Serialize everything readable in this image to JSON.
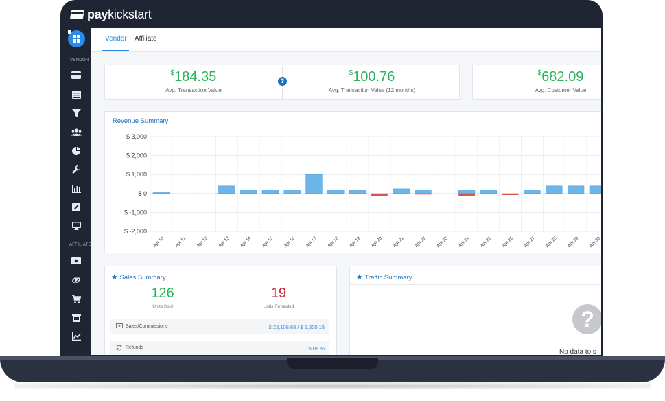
{
  "app": {
    "logo_pay": "pay",
    "logo_kick": "kickstart"
  },
  "sidebar": {
    "vendor_label": "VENDOR",
    "affiliate_label": "AFFILIATE",
    "vendor_icons": [
      "credit-card-icon",
      "list-icon",
      "filter-icon",
      "users-icon",
      "pie-chart-icon",
      "wrench-icon",
      "bar-chart-icon",
      "edit-icon",
      "monitor-icon"
    ],
    "affiliate_icons": [
      "money-icon",
      "link-icon",
      "cart-icon",
      "store-icon",
      "line-chart-icon"
    ]
  },
  "tabs": [
    {
      "label": "Vendor",
      "active": true
    },
    {
      "label": "Affiliate",
      "active": false
    }
  ],
  "stats": [
    {
      "currency": "$",
      "value": "184.35",
      "label": "Avg. Transaction Value"
    },
    {
      "currency": "$",
      "value": "100.76",
      "label": "Avg. Transaction Value (12 months)"
    },
    {
      "currency": "$",
      "value": "682.09",
      "label": "Avg. Customer Value"
    }
  ],
  "revenue": {
    "title": "Revenue Summary"
  },
  "chart_data": {
    "type": "bar",
    "title": "Revenue Summary",
    "ylim": [
      -2000,
      3000
    ],
    "yticks": [
      "$ 3,000",
      "$ 2,000",
      "$ 1,000",
      "$ 0",
      "$ -1,000",
      "$ -2,000"
    ],
    "ytick_values": [
      3000,
      2000,
      1000,
      0,
      -1000,
      -2000
    ],
    "categories": [
      "Apr 10",
      "Apr 11",
      "Apr 12",
      "Apr 13",
      "Apr 14",
      "Apr 15",
      "Apr 16",
      "Apr 17",
      "Apr 18",
      "Apr 19",
      "Apr 20",
      "Apr 21",
      "Apr 22",
      "Apr 23",
      "Apr 24",
      "Apr 25",
      "Apr 26",
      "Apr 27",
      "Apr 28",
      "Apr 29",
      "Apr 30"
    ],
    "values": [
      50,
      0,
      0,
      400,
      200,
      200,
      200,
      1000,
      200,
      200,
      -150,
      250,
      200,
      0,
      200,
      200,
      0,
      200,
      400,
      400,
      400
    ],
    "negative_values": [
      0,
      0,
      0,
      0,
      0,
      0,
      0,
      0,
      0,
      0,
      -150,
      0,
      -30,
      0,
      -150,
      0,
      -80,
      0,
      0,
      0,
      0
    ],
    "colors": {
      "positive": "#6bb5e8",
      "negative": "#d9534f"
    },
    "grid": true
  },
  "sales": {
    "title": "Sales Summary",
    "units_sold": "126",
    "units_sold_label": "Units Sold",
    "units_refunded": "19",
    "units_refunded_label": "Units Refunded",
    "rows": [
      {
        "label": "Sales/Commissions",
        "value": "$ 22,108.68 / $ 5,300.15"
      },
      {
        "label": "Refunds",
        "value": "15.08 %"
      }
    ]
  },
  "traffic": {
    "title": "Traffic Summary",
    "no_data": "No data to s"
  }
}
